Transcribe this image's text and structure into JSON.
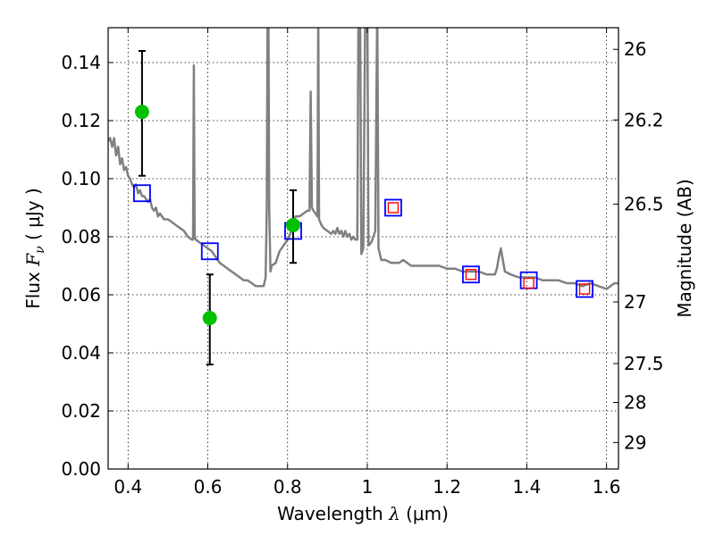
{
  "chart_data": {
    "type": "scatter",
    "title": "",
    "xlabel": "Wavelength  λ (μm)",
    "xlabel_parts": {
      "text": "Wavelength  ",
      "symbol": "λ",
      "unit": " (μm)"
    },
    "ylabel": "Flux  Fν  ( μJy )",
    "ylabel_parts": {
      "text": "Flux  ",
      "symbol": "F",
      "sub": "ν",
      "unit": "  ( μJy )"
    },
    "y2label": "Magnitude (AB)",
    "xlim": [
      0.35,
      1.63
    ],
    "ylim": [
      0.0,
      0.152
    ],
    "grid": true,
    "x_ticks": [
      {
        "v": 0.4,
        "label": "0.4"
      },
      {
        "v": 0.6,
        "label": "0.6"
      },
      {
        "v": 0.8,
        "label": "0.8"
      },
      {
        "v": 1.0,
        "label": "1"
      },
      {
        "v": 1.2,
        "label": "1.2"
      },
      {
        "v": 1.4,
        "label": "1.4"
      },
      {
        "v": 1.6,
        "label": "1.6"
      }
    ],
    "y_ticks": [
      {
        "v": 0.0,
        "label": "0.00"
      },
      {
        "v": 0.02,
        "label": "0.02"
      },
      {
        "v": 0.04,
        "label": "0.04"
      },
      {
        "v": 0.06,
        "label": "0.06"
      },
      {
        "v": 0.08,
        "label": "0.08"
      },
      {
        "v": 0.1,
        "label": "0.10"
      },
      {
        "v": 0.12,
        "label": "0.12"
      },
      {
        "v": 0.14,
        "label": "0.14"
      }
    ],
    "y2_ticks": [
      {
        "mag": 26,
        "label": "26"
      },
      {
        "mag": 26.2,
        "label": "26.2"
      },
      {
        "mag": 26.5,
        "label": "26.5"
      },
      {
        "mag": 27,
        "label": "27"
      },
      {
        "mag": 27.5,
        "label": "27.5"
      },
      {
        "mag": 28,
        "label": "28"
      },
      {
        "mag": 29,
        "label": "29"
      }
    ],
    "colors": {
      "model": "#808080",
      "observed": "#00c000",
      "model_photometry_blue": "#0000ff",
      "model_photometry_red": "#ff0000",
      "errorbar": "#000000"
    },
    "series": [
      {
        "kind": "line",
        "points": [
          [
            0.35,
            0.113
          ],
          [
            0.355,
            0.114
          ],
          [
            0.36,
            0.111
          ],
          [
            0.365,
            0.114
          ],
          [
            0.37,
            0.108
          ],
          [
            0.375,
            0.111
          ],
          [
            0.38,
            0.105
          ],
          [
            0.385,
            0.107
          ],
          [
            0.39,
            0.103
          ],
          [
            0.395,
            0.104
          ],
          [
            0.4,
            0.101
          ],
          [
            0.405,
            0.1
          ],
          [
            0.41,
            0.098
          ],
          [
            0.415,
            0.097
          ],
          [
            0.42,
            0.098
          ],
          [
            0.425,
            0.095
          ],
          [
            0.43,
            0.096
          ],
          [
            0.435,
            0.094
          ],
          [
            0.44,
            0.094
          ],
          [
            0.445,
            0.093
          ],
          [
            0.45,
            0.092
          ],
          [
            0.455,
            0.093
          ],
          [
            0.46,
            0.09
          ],
          [
            0.465,
            0.089
          ],
          [
            0.47,
            0.09
          ],
          [
            0.475,
            0.087
          ],
          [
            0.48,
            0.088
          ],
          [
            0.49,
            0.086
          ],
          [
            0.5,
            0.086
          ],
          [
            0.51,
            0.085
          ],
          [
            0.52,
            0.084
          ],
          [
            0.53,
            0.083
          ],
          [
            0.54,
            0.082
          ],
          [
            0.55,
            0.08
          ],
          [
            0.56,
            0.079
          ],
          [
            0.563,
            0.079
          ],
          [
            0.565,
            0.139
          ],
          [
            0.567,
            0.08
          ],
          [
            0.57,
            0.079
          ],
          [
            0.58,
            0.078
          ],
          [
            0.59,
            0.077
          ],
          [
            0.6,
            0.076
          ],
          [
            0.61,
            0.075
          ],
          [
            0.62,
            0.073
          ],
          [
            0.63,
            0.071
          ],
          [
            0.64,
            0.07
          ],
          [
            0.65,
            0.069
          ],
          [
            0.66,
            0.068
          ],
          [
            0.67,
            0.067
          ],
          [
            0.68,
            0.066
          ],
          [
            0.69,
            0.065
          ],
          [
            0.7,
            0.065
          ],
          [
            0.71,
            0.064
          ],
          [
            0.72,
            0.063
          ],
          [
            0.73,
            0.063
          ],
          [
            0.74,
            0.063
          ],
          [
            0.745,
            0.066
          ],
          [
            0.748,
            0.09
          ],
          [
            0.75,
            0.16
          ],
          [
            0.752,
            0.16
          ],
          [
            0.754,
            0.09
          ],
          [
            0.757,
            0.068
          ],
          [
            0.76,
            0.07
          ],
          [
            0.77,
            0.071
          ],
          [
            0.775,
            0.073
          ],
          [
            0.78,
            0.075
          ],
          [
            0.79,
            0.077
          ],
          [
            0.8,
            0.079
          ],
          [
            0.81,
            0.082
          ],
          [
            0.815,
            0.085
          ],
          [
            0.82,
            0.087
          ],
          [
            0.83,
            0.087
          ],
          [
            0.84,
            0.088
          ],
          [
            0.85,
            0.089
          ],
          [
            0.855,
            0.089
          ],
          [
            0.858,
            0.13
          ],
          [
            0.861,
            0.09
          ],
          [
            0.865,
            0.089
          ],
          [
            0.87,
            0.088
          ],
          [
            0.875,
            0.087
          ],
          [
            0.877,
            0.16
          ],
          [
            0.879,
            0.086
          ],
          [
            0.885,
            0.084
          ],
          [
            0.89,
            0.083
          ],
          [
            0.9,
            0.082
          ],
          [
            0.91,
            0.081
          ],
          [
            0.915,
            0.082
          ],
          [
            0.92,
            0.081
          ],
          [
            0.925,
            0.083
          ],
          [
            0.93,
            0.081
          ],
          [
            0.935,
            0.082
          ],
          [
            0.94,
            0.08
          ],
          [
            0.945,
            0.082
          ],
          [
            0.95,
            0.08
          ],
          [
            0.955,
            0.081
          ],
          [
            0.96,
            0.079
          ],
          [
            0.965,
            0.08
          ],
          [
            0.97,
            0.079
          ],
          [
            0.975,
            0.079
          ],
          [
            0.978,
            0.16
          ],
          [
            0.982,
            0.16
          ],
          [
            0.985,
            0.074
          ],
          [
            0.99,
            0.076
          ],
          [
            0.995,
            0.16
          ],
          [
            1.0,
            0.16
          ],
          [
            1.003,
            0.077
          ],
          [
            1.01,
            0.078
          ],
          [
            1.015,
            0.08
          ],
          [
            1.02,
            0.082
          ],
          [
            1.025,
            0.16
          ],
          [
            1.028,
            0.076
          ],
          [
            1.035,
            0.072
          ],
          [
            1.045,
            0.072
          ],
          [
            1.06,
            0.071
          ],
          [
            1.07,
            0.071
          ],
          [
            1.08,
            0.071
          ],
          [
            1.09,
            0.072
          ],
          [
            1.1,
            0.071
          ],
          [
            1.11,
            0.07
          ],
          [
            1.12,
            0.07
          ],
          [
            1.14,
            0.07
          ],
          [
            1.16,
            0.07
          ],
          [
            1.18,
            0.07
          ],
          [
            1.2,
            0.069
          ],
          [
            1.22,
            0.069
          ],
          [
            1.24,
            0.068
          ],
          [
            1.26,
            0.068
          ],
          [
            1.28,
            0.068
          ],
          [
            1.3,
            0.067
          ],
          [
            1.32,
            0.067
          ],
          [
            1.325,
            0.069
          ],
          [
            1.33,
            0.073
          ],
          [
            1.335,
            0.076
          ],
          [
            1.34,
            0.072
          ],
          [
            1.345,
            0.068
          ],
          [
            1.36,
            0.067
          ],
          [
            1.38,
            0.066
          ],
          [
            1.4,
            0.066
          ],
          [
            1.42,
            0.066
          ],
          [
            1.44,
            0.065
          ],
          [
            1.46,
            0.065
          ],
          [
            1.48,
            0.065
          ],
          [
            1.5,
            0.064
          ],
          [
            1.52,
            0.064
          ],
          [
            1.54,
            0.063
          ],
          [
            1.56,
            0.064
          ],
          [
            1.58,
            0.063
          ],
          [
            1.6,
            0.062
          ],
          [
            1.61,
            0.063
          ],
          [
            1.62,
            0.064
          ],
          [
            1.63,
            0.064
          ]
        ]
      },
      {
        "kind": "points-with-errorbars",
        "points": [
          {
            "x": 0.435,
            "y": 0.123,
            "yerr": [
              0.101,
              0.144
            ]
          },
          {
            "x": 0.605,
            "y": 0.052,
            "yerr": [
              0.036,
              0.067
            ]
          },
          {
            "x": 0.814,
            "y": 0.084,
            "yerr": [
              0.071,
              0.096
            ]
          }
        ]
      },
      {
        "kind": "open-squares",
        "points": [
          {
            "x": 0.435,
            "y": 0.095
          },
          {
            "x": 0.605,
            "y": 0.075
          },
          {
            "x": 0.814,
            "y": 0.082
          },
          {
            "x": 1.065,
            "y": 0.09
          },
          {
            "x": 1.26,
            "y": 0.067
          },
          {
            "x": 1.405,
            "y": 0.065
          },
          {
            "x": 1.545,
            "y": 0.062
          }
        ]
      },
      {
        "kind": "small-open-squares",
        "points": [
          {
            "x": 1.065,
            "y": 0.09
          },
          {
            "x": 1.26,
            "y": 0.067
          },
          {
            "x": 1.405,
            "y": 0.064
          },
          {
            "x": 1.545,
            "y": 0.062
          }
        ]
      }
    ]
  }
}
